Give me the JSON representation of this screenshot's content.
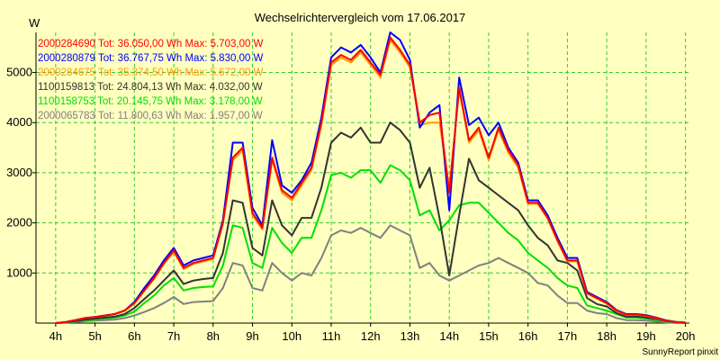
{
  "chart_data": {
    "type": "line",
    "title": "Wechselrichtervergleich vom 17.06.2017",
    "ylabel": "W",
    "footer": "SunnyReport pinxit",
    "xlim": [
      3.5,
      20.1
    ],
    "ylim": [
      0,
      5800
    ],
    "grid": true,
    "x_ticks": [
      4,
      5,
      6,
      7,
      8,
      9,
      10,
      11,
      12,
      13,
      14,
      15,
      16,
      17,
      18,
      19,
      20
    ],
    "x_tick_labels": [
      "4h",
      "5h",
      "6h",
      "7h",
      "8h",
      "9h",
      "10h",
      "11h",
      "12h",
      "13h",
      "14h",
      "15h",
      "16h",
      "17h",
      "18h",
      "19h",
      "20h"
    ],
    "y_ticks": [
      1000,
      2000,
      3000,
      4000,
      5000
    ],
    "y_tick_labels": [
      "1000",
      "2000",
      "3000",
      "4000",
      "5000"
    ],
    "legend_position": "top-left",
    "x": [
      4.0,
      4.25,
      4.5,
      4.75,
      5.0,
      5.25,
      5.5,
      5.75,
      6.0,
      6.25,
      6.5,
      6.75,
      7.0,
      7.25,
      7.5,
      7.75,
      8.0,
      8.25,
      8.5,
      8.75,
      9.0,
      9.25,
      9.5,
      9.75,
      10.0,
      10.25,
      10.5,
      10.75,
      11.0,
      11.25,
      11.5,
      11.75,
      12.0,
      12.25,
      12.5,
      12.75,
      13.0,
      13.25,
      13.5,
      13.75,
      14.0,
      14.25,
      14.5,
      14.75,
      15.0,
      15.25,
      15.5,
      15.75,
      16.0,
      16.25,
      16.5,
      16.75,
      17.0,
      17.25,
      17.5,
      17.75,
      18.0,
      18.25,
      18.5,
      18.75,
      19.0,
      19.25,
      19.5,
      19.75,
      20.0
    ],
    "series": [
      {
        "name": "2000284690",
        "legend": "2000284690 Tot: 36.050,00 Wh Max: 5.703,00 W",
        "color": "#ff0000",
        "values": [
          0,
          20,
          60,
          100,
          120,
          150,
          180,
          250,
          400,
          650,
          900,
          1200,
          1450,
          1100,
          1200,
          1250,
          1300,
          2000,
          3300,
          3500,
          2200,
          1900,
          3300,
          2650,
          2500,
          2800,
          3100,
          4000,
          5200,
          5350,
          5250,
          5450,
          5200,
          4950,
          5700,
          5450,
          5150,
          4000,
          4150,
          4200,
          2600,
          4700,
          3650,
          3900,
          3300,
          3900,
          3450,
          3150,
          2400,
          2400,
          2100,
          1650,
          1250,
          1250,
          600,
          500,
          400,
          250,
          170,
          170,
          150,
          100,
          50,
          20,
          10
        ]
      },
      {
        "name": "2000280879",
        "legend": "2000280879 Tot: 36.767,75 Wh Max: 5.830,00 W",
        "color": "#0000ff",
        "values": [
          0,
          20,
          60,
          100,
          120,
          150,
          180,
          250,
          420,
          700,
          950,
          1250,
          1500,
          1150,
          1250,
          1300,
          1350,
          2050,
          3600,
          3600,
          2300,
          1950,
          3650,
          2750,
          2600,
          2850,
          3200,
          4100,
          5300,
          5500,
          5400,
          5550,
          5300,
          5000,
          5800,
          5650,
          5250,
          3900,
          4200,
          4350,
          2250,
          4900,
          3950,
          4100,
          3750,
          4000,
          3500,
          3200,
          2450,
          2450,
          2150,
          1700,
          1300,
          1300,
          620,
          520,
          420,
          260,
          180,
          180,
          160,
          110,
          55,
          25,
          10
        ]
      },
      {
        "name": "2000284675",
        "legend": "2000284675 Tot: 35.374,50 Wh Max: 5.672,00 W",
        "color": "#ff9900",
        "values": [
          0,
          20,
          60,
          100,
          120,
          150,
          180,
          240,
          390,
          640,
          880,
          1180,
          1420,
          1080,
          1180,
          1230,
          1280,
          1980,
          3250,
          3450,
          2150,
          1870,
          3250,
          2600,
          2450,
          2750,
          3050,
          3950,
          5150,
          5300,
          5200,
          5400,
          5150,
          4900,
          5650,
          5400,
          5100,
          3950,
          4000,
          4000,
          2700,
          4650,
          3600,
          3850,
          3250,
          3850,
          3400,
          3100,
          2380,
          2380,
          2080,
          1630,
          1230,
          1230,
          590,
          490,
          390,
          240,
          165,
          165,
          145,
          95,
          48,
          18,
          8
        ]
      },
      {
        "name": "1100159813",
        "legend": "1100159813 Tot: 24.804,13 Wh Max: 4.032,00 W",
        "color": "#333333",
        "values": [
          0,
          15,
          40,
          70,
          90,
          110,
          130,
          180,
          300,
          480,
          650,
          850,
          1050,
          780,
          850,
          880,
          900,
          1400,
          2450,
          2400,
          1500,
          1350,
          2450,
          1950,
          1750,
          2100,
          2100,
          2700,
          3600,
          3800,
          3700,
          3900,
          3600,
          3600,
          4000,
          3850,
          3600,
          2700,
          3100,
          2100,
          950,
          2150,
          3280,
          2850,
          2700,
          2550,
          2400,
          2250,
          1950,
          1700,
          1550,
          1250,
          1200,
          1050,
          500,
          380,
          330,
          200,
          130,
          130,
          110,
          80,
          40,
          15,
          5
        ]
      },
      {
        "name": "1100158753",
        "legend": "1100158753 Tot: 20.145,75 Wh Max: 3.178,00 W",
        "color": "#00e000",
        "values": [
          0,
          10,
          30,
          50,
          70,
          90,
          110,
          150,
          230,
          400,
          550,
          750,
          900,
          650,
          700,
          720,
          730,
          1150,
          1950,
          1900,
          1200,
          1100,
          1900,
          1600,
          1400,
          1700,
          1700,
          2250,
          2950,
          3000,
          2900,
          3050,
          3050,
          2800,
          3150,
          3050,
          2850,
          2150,
          2250,
          1850,
          2050,
          2350,
          2400,
          2400,
          2200,
          2000,
          1800,
          1650,
          1400,
          1250,
          1100,
          900,
          750,
          700,
          350,
          300,
          250,
          180,
          110,
          110,
          90,
          60,
          30,
          10,
          5
        ]
      },
      {
        "name": "2000065783",
        "legend": "2000065783 Tot: 11.800,63 Wh Max: 1.957,00 W",
        "color": "#808080",
        "values": [
          0,
          10,
          20,
          40,
          50,
          60,
          70,
          100,
          150,
          220,
          300,
          400,
          520,
          380,
          420,
          430,
          440,
          700,
          1200,
          1150,
          700,
          650,
          1200,
          1000,
          850,
          1000,
          950,
          1300,
          1750,
          1850,
          1800,
          1900,
          1800,
          1700,
          1950,
          1850,
          1750,
          1100,
          1200,
          950,
          850,
          950,
          1050,
          1150,
          1200,
          1300,
          1200,
          1100,
          1000,
          800,
          750,
          550,
          400,
          400,
          250,
          200,
          180,
          100,
          60,
          60,
          50,
          30,
          15,
          5,
          0
        ]
      }
    ]
  }
}
